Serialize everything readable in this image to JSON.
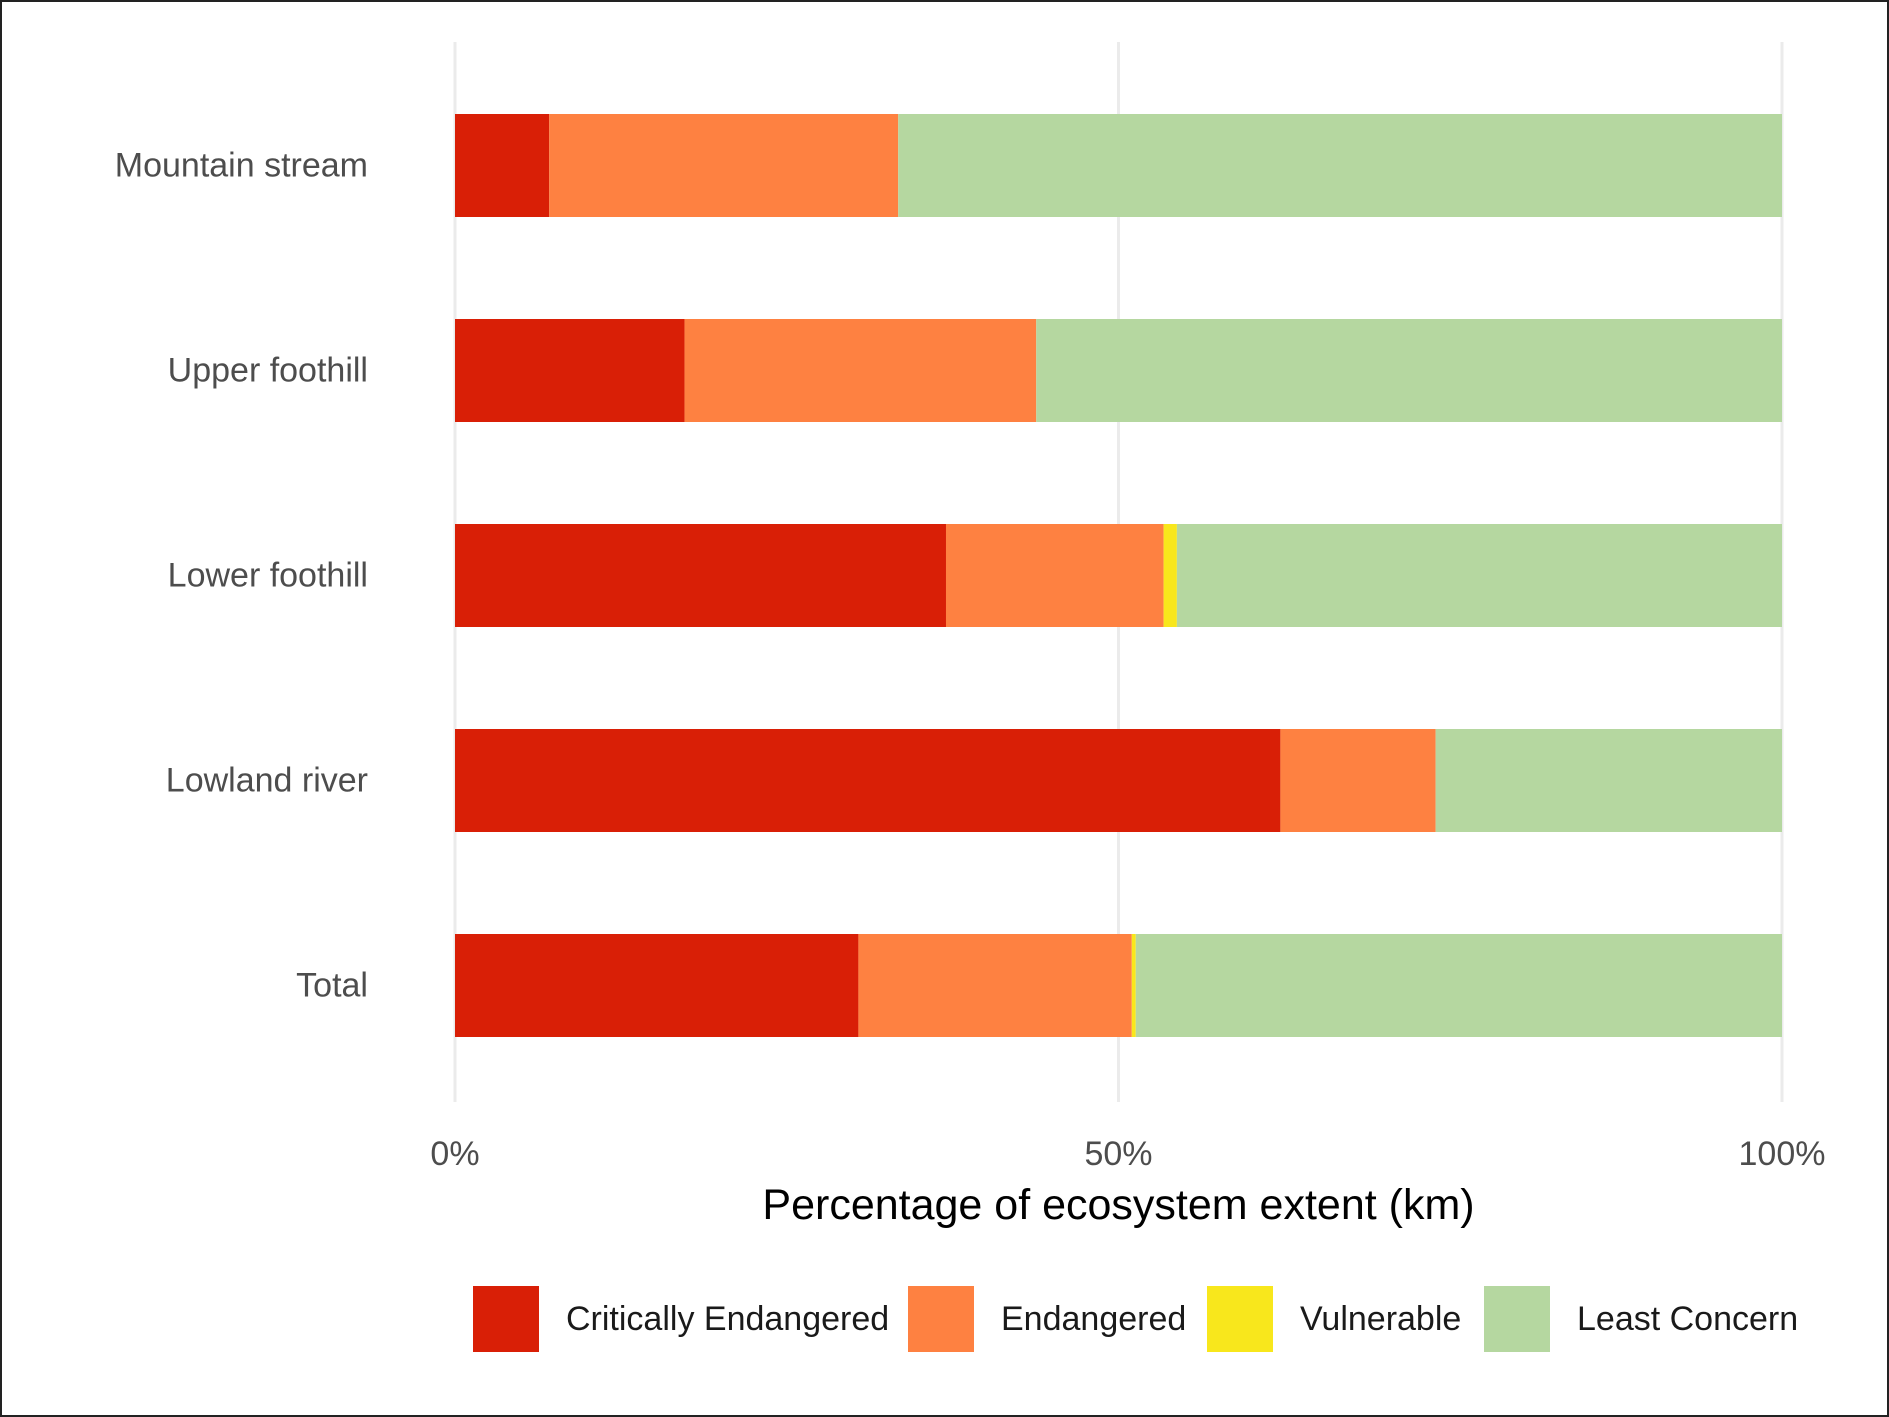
{
  "chart_data": {
    "type": "bar",
    "orientation": "horizontal",
    "stacked": true,
    "categories": [
      "Mountain stream",
      "Upper foothill",
      "Lower foothill",
      "Lowland river",
      "Total"
    ],
    "series": [
      {
        "name": "Critically Endangered",
        "color": "#d91f06",
        "values": [
          7.1,
          17.3,
          37.0,
          62.2,
          30.4
        ]
      },
      {
        "name": "Endangered",
        "color": "#fe8141",
        "values": [
          26.3,
          26.5,
          16.4,
          11.7,
          20.6
        ]
      },
      {
        "name": "Vulnerable",
        "color": "#f8e71c",
        "values": [
          0.0,
          0.0,
          1.0,
          0.0,
          0.3
        ]
      },
      {
        "name": "Least Concern",
        "color": "#b5d7a0",
        "values": [
          66.6,
          56.2,
          45.6,
          26.1,
          48.7
        ]
      }
    ],
    "xlabel": "Percentage of ecosystem extent (km)",
    "ylabel": "",
    "xlim": [
      0,
      100
    ],
    "x_ticks": [
      {
        "value": 0,
        "label": "0%"
      },
      {
        "value": 50,
        "label": "50%"
      },
      {
        "value": 100,
        "label": "100%"
      }
    ],
    "grid": "vertical major lines",
    "legend_position": "bottom"
  }
}
